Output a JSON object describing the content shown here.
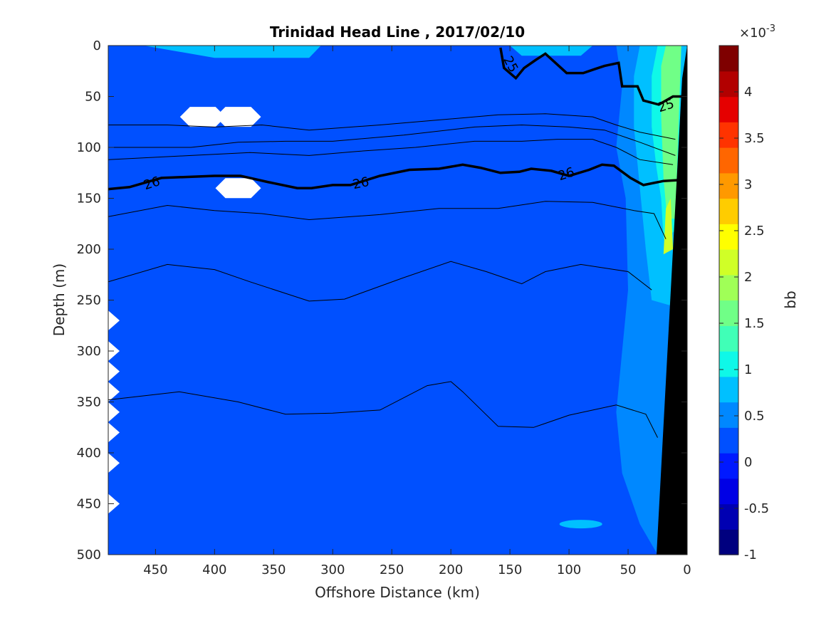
{
  "chart_data": {
    "type": "contour",
    "title": "Trinidad Head Line , 2017/02/10",
    "xlabel": "Offshore Distance (km)",
    "ylabel": "Depth (m)",
    "xlim": [
      490,
      0
    ],
    "ylim": [
      0,
      500
    ],
    "x_reversed": true,
    "y_reversed": true,
    "xticks": [
      "450",
      "400",
      "350",
      "300",
      "250",
      "200",
      "150",
      "100",
      "50",
      "0"
    ],
    "yticks": [
      "0",
      "50",
      "100",
      "150",
      "200",
      "250",
      "300",
      "350",
      "400",
      "450",
      "500"
    ],
    "colorbar": {
      "label": "bb",
      "exponent_base": "×10",
      "exponent_power": "-3",
      "range": [
        -1,
        4.5
      ],
      "tick_labels": [
        "-1",
        "-0.5",
        "0",
        "0.5",
        "1",
        "1.5",
        "2",
        "2.5",
        "3",
        "3.5",
        "4"
      ],
      "colormap": "jet",
      "level_colors": [
        "#00007f",
        "#0000b2",
        "#0000e5",
        "#0019ff",
        "#0050ff",
        "#0088ff",
        "#00c0ff",
        "#0ff8e8",
        "#40ffb7",
        "#70ff87",
        "#a0ff57",
        "#d0ff27",
        "#ffff00",
        "#ffcc00",
        "#ff9900",
        "#ff6600",
        "#ff3300",
        "#e50000",
        "#b20000",
        "#7f0000"
      ]
    },
    "background_level": "0 to 0.25 (×10^-3)",
    "contour_labels": [
      "25",
      "25",
      "26",
      "26",
      "26"
    ],
    "isopycnals": [
      {
        "label": "25",
        "bold": true,
        "points": [
          [
            2,
            50
          ],
          [
            12,
            50
          ],
          [
            24,
            58
          ],
          [
            37,
            54
          ],
          [
            42,
            40
          ],
          [
            55,
            40
          ],
          [
            58,
            17
          ],
          [
            70,
            20
          ],
          [
            78,
            23
          ],
          [
            88,
            27
          ],
          [
            102,
            27
          ],
          [
            120,
            8
          ],
          [
            128,
            14
          ],
          [
            138,
            22
          ],
          [
            145,
            32
          ],
          [
            155,
            22
          ],
          [
            158,
            2
          ]
        ]
      },
      {
        "label": "26",
        "bold": true,
        "points": [
          [
            5,
            132
          ],
          [
            20,
            133
          ],
          [
            37,
            137
          ],
          [
            48,
            130
          ],
          [
            62,
            118
          ],
          [
            72,
            117
          ],
          [
            83,
            122
          ],
          [
            100,
            128
          ],
          [
            115,
            123
          ],
          [
            132,
            121
          ],
          [
            142,
            124
          ],
          [
            158,
            125
          ],
          [
            175,
            120
          ],
          [
            190,
            117
          ],
          [
            210,
            121
          ],
          [
            235,
            122
          ],
          [
            260,
            128
          ],
          [
            285,
            137
          ],
          [
            300,
            137
          ],
          [
            318,
            140
          ],
          [
            330,
            140
          ],
          [
            355,
            134
          ],
          [
            378,
            128
          ],
          [
            400,
            128
          ],
          [
            445,
            130
          ],
          [
            472,
            139
          ],
          [
            490,
            141
          ]
        ]
      },
      {
        "label": "",
        "bold": false,
        "points": [
          [
            10,
            92
          ],
          [
            40,
            85
          ],
          [
            60,
            78
          ],
          [
            80,
            70
          ],
          [
            120,
            67
          ],
          [
            160,
            68
          ],
          [
            200,
            72
          ],
          [
            260,
            78
          ],
          [
            320,
            83
          ],
          [
            360,
            78
          ],
          [
            400,
            80
          ],
          [
            440,
            78
          ],
          [
            490,
            78
          ]
        ]
      },
      {
        "label": "",
        "bold": false,
        "points": [
          [
            10,
            108
          ],
          [
            40,
            95
          ],
          [
            70,
            83
          ],
          [
            100,
            80
          ],
          [
            140,
            78
          ],
          [
            180,
            80
          ],
          [
            240,
            88
          ],
          [
            300,
            94
          ],
          [
            340,
            94
          ],
          [
            380,
            95
          ],
          [
            420,
            100
          ],
          [
            490,
            100
          ]
        ]
      },
      {
        "label": "",
        "bold": false,
        "points": [
          [
            12,
            117
          ],
          [
            40,
            112
          ],
          [
            60,
            100
          ],
          [
            80,
            92
          ],
          [
            110,
            92
          ],
          [
            140,
            94
          ],
          [
            180,
            94
          ],
          [
            230,
            100
          ],
          [
            280,
            104
          ],
          [
            320,
            108
          ],
          [
            370,
            105
          ],
          [
            420,
            108
          ],
          [
            490,
            112
          ]
        ]
      },
      {
        "label": "",
        "bold": false,
        "points": [
          [
            18,
            190
          ],
          [
            28,
            165
          ],
          [
            45,
            162
          ],
          [
            80,
            154
          ],
          [
            120,
            153
          ],
          [
            160,
            160
          ],
          [
            210,
            160
          ],
          [
            260,
            166
          ],
          [
            320,
            171
          ],
          [
            360,
            165
          ],
          [
            400,
            162
          ],
          [
            440,
            157
          ],
          [
            490,
            168
          ]
        ]
      },
      {
        "label": "",
        "bold": false,
        "points": [
          [
            30,
            240
          ],
          [
            50,
            222
          ],
          [
            90,
            215
          ],
          [
            120,
            222
          ],
          [
            140,
            234
          ],
          [
            170,
            222
          ],
          [
            200,
            212
          ],
          [
            240,
            228
          ],
          [
            290,
            249
          ],
          [
            320,
            251
          ],
          [
            370,
            232
          ],
          [
            400,
            220
          ],
          [
            440,
            215
          ],
          [
            490,
            232
          ]
        ]
      },
      {
        "label": "",
        "bold": false,
        "points": [
          [
            25,
            385
          ],
          [
            35,
            362
          ],
          [
            60,
            353
          ],
          [
            100,
            363
          ],
          [
            130,
            375
          ],
          [
            160,
            374
          ],
          [
            190,
            340
          ],
          [
            200,
            330
          ],
          [
            220,
            334
          ],
          [
            260,
            358
          ],
          [
            300,
            361
          ],
          [
            340,
            362
          ],
          [
            380,
            350
          ],
          [
            430,
            340
          ],
          [
            490,
            348
          ]
        ]
      }
    ]
  }
}
